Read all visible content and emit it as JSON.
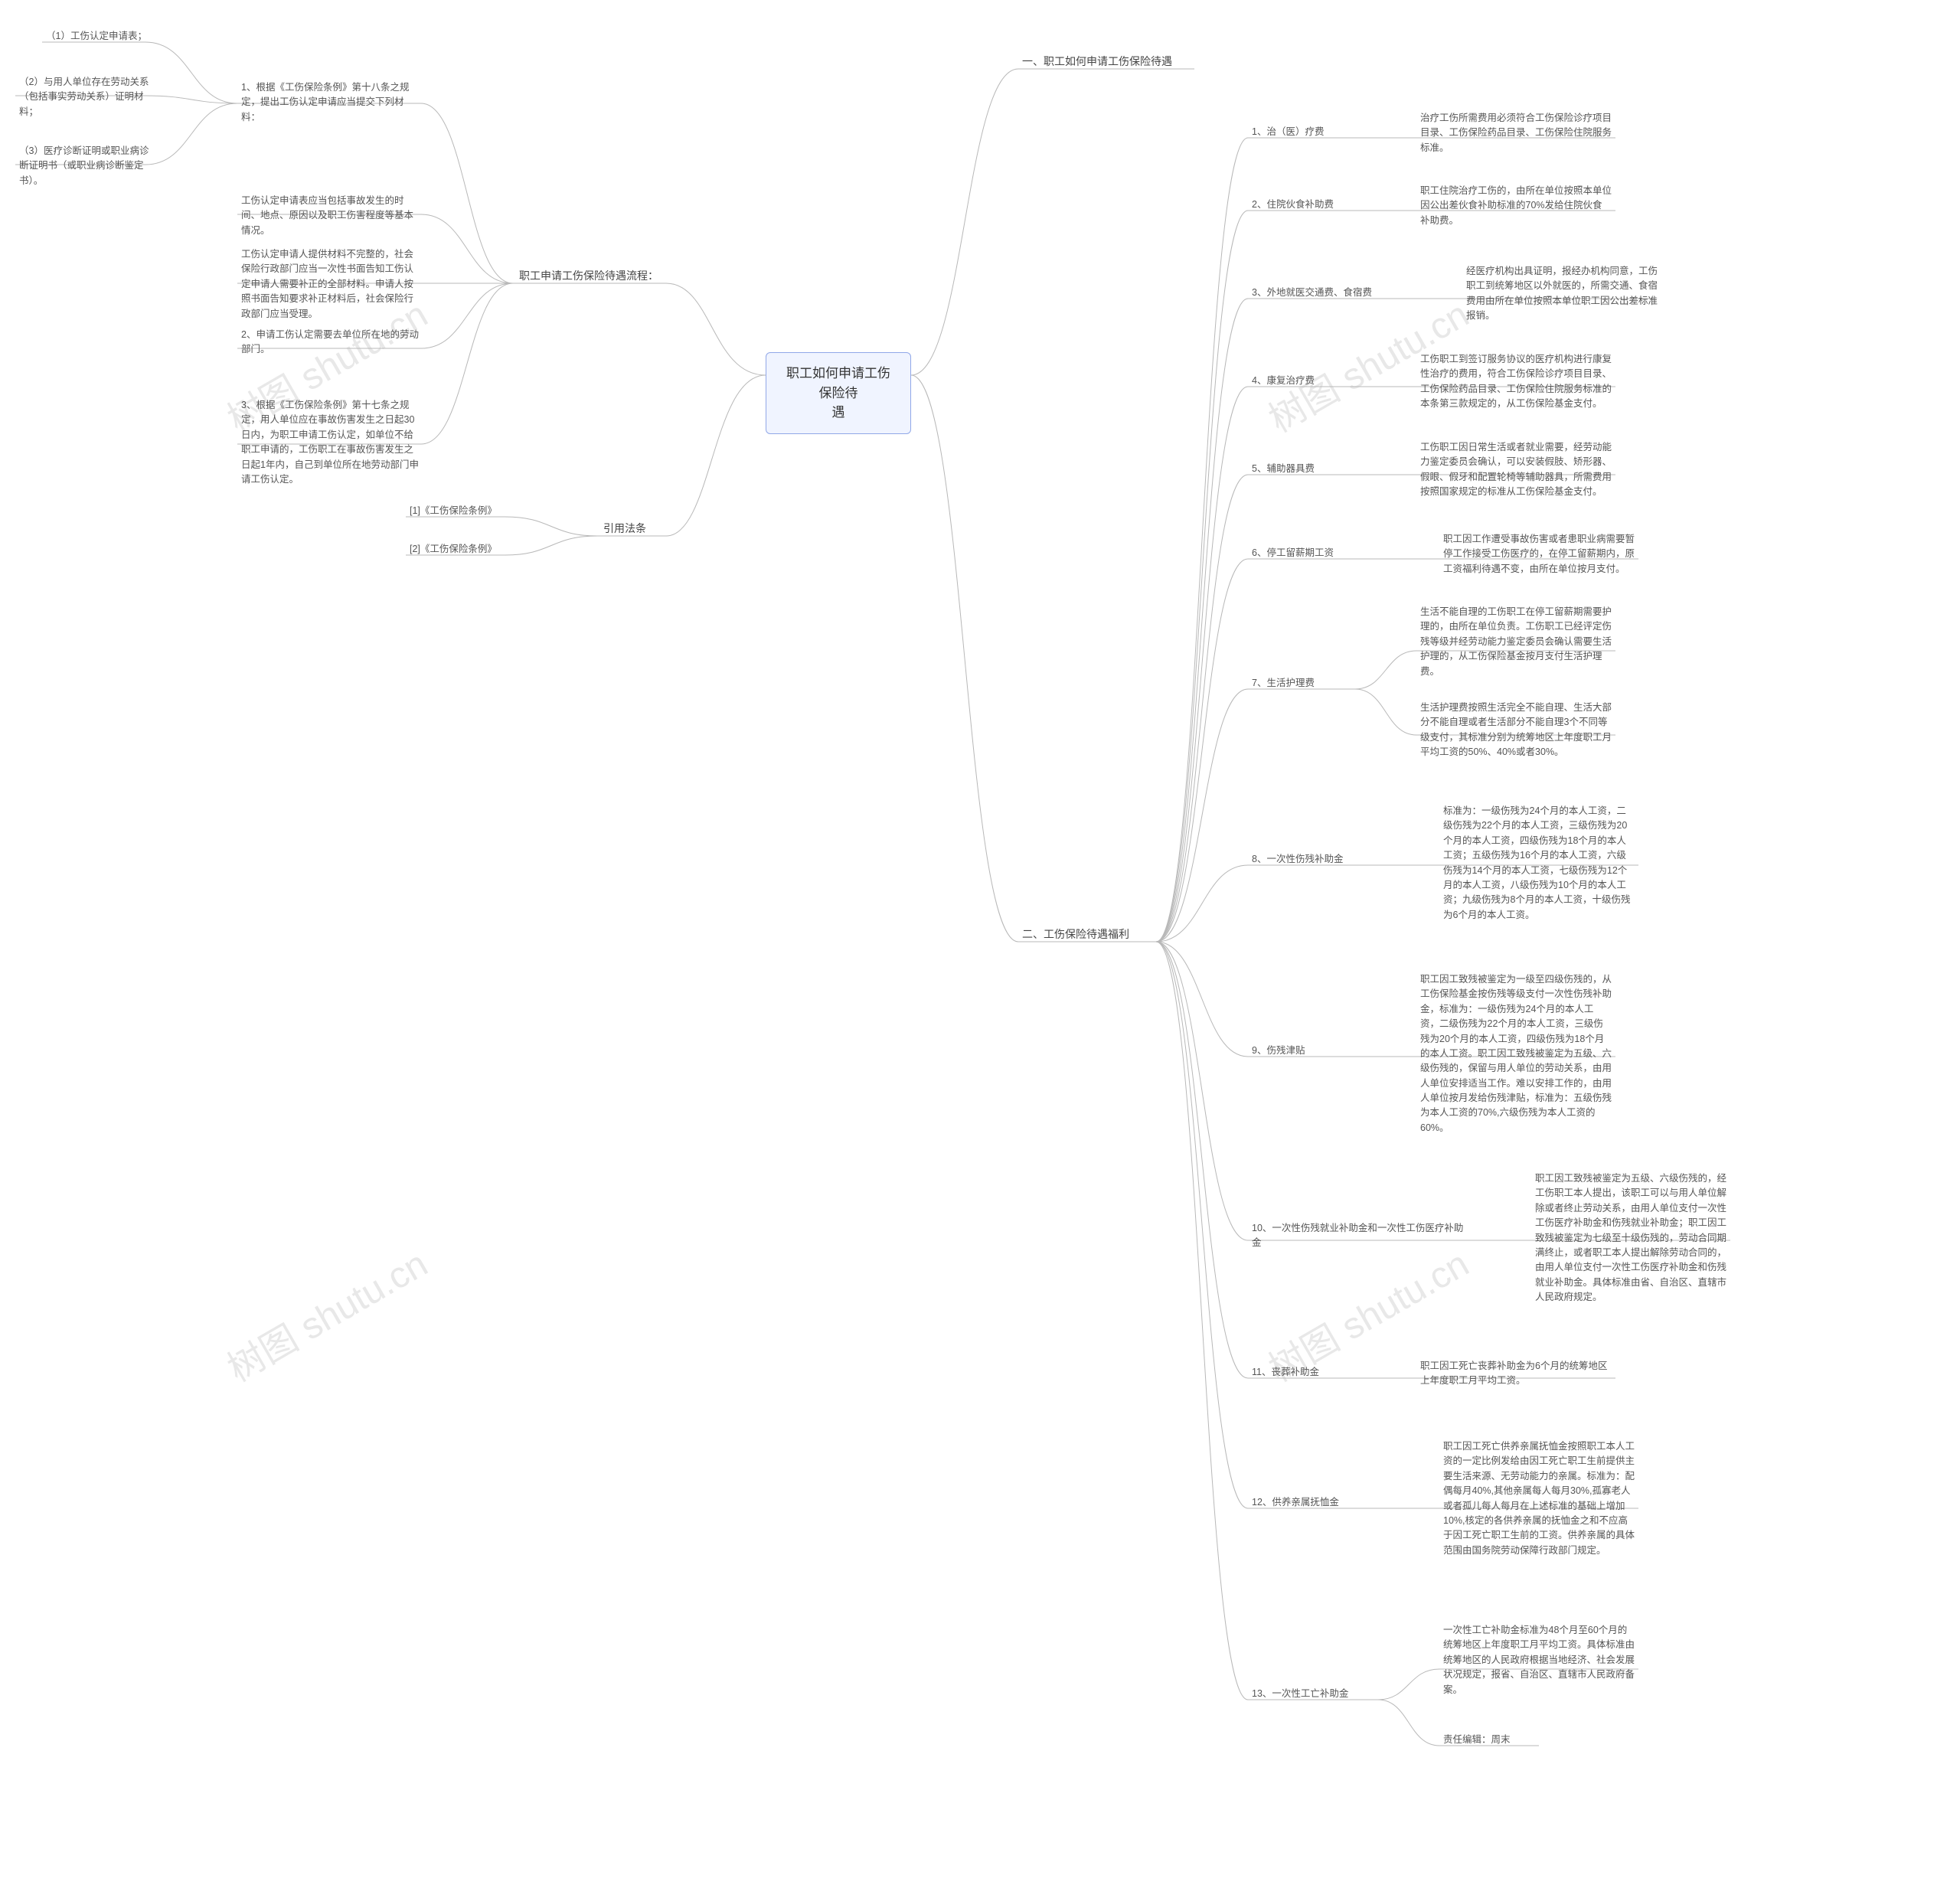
{
  "watermarks": [
    "树图 shutu.cn",
    "树图 shutu.cn",
    "树图 shutu.cn",
    "树图 shutu.cn"
  ],
  "center": {
    "label": "职工如何申请工伤保险待\n遇"
  },
  "colors": {
    "connector": "#b8b8b8",
    "text": "#555",
    "title_text": "#444",
    "center_bg": "#f0f4ff",
    "center_border": "#91a8e8"
  },
  "fonts": {
    "node_size": 12.5,
    "title_size": 14,
    "center_size": 17
  },
  "right": {
    "s1": {
      "title": "一、职工如何申请工伤保险待遇"
    },
    "s2": {
      "title": "二、工伤保险待遇福利",
      "items": [
        {
          "label": "1、治（医）疗费",
          "desc": "治疗工伤所需费用必须符合工伤保险诊疗项目目录、工伤保险药品目录、工伤保险住院服务标准。"
        },
        {
          "label": "2、住院伙食补助费",
          "desc": "职工住院治疗工伤的，由所在单位按照本单位因公出差伙食补助标准的70%发给住院伙食补助费。"
        },
        {
          "label": "3、外地就医交通费、食宿费",
          "desc": "经医疗机构出具证明，报经办机构同意，工伤职工到统筹地区以外就医的，所需交通、食宿费用由所在单位按照本单位职工因公出差标准报销。"
        },
        {
          "label": "4、康复治疗费",
          "desc": "工伤职工到签订服务协议的医疗机构进行康复性治疗的费用，符合工伤保险诊疗项目目录、工伤保险药品目录、工伤保险住院服务标准的本条第三款规定的，从工伤保险基金支付。"
        },
        {
          "label": "5、辅助器具费",
          "desc": "工伤职工因日常生活或者就业需要，经劳动能力鉴定委员会确认，可以安装假肢、矫形器、假眼、假牙和配置轮椅等辅助器具，所需费用按照国家规定的标准从工伤保险基金支付。"
        },
        {
          "label": "6、停工留薪期工资",
          "desc": "职工因工作遭受事故伤害或者患职业病需要暂停工作接受工伤医疗的，在停工留薪期内，原工资福利待遇不变，由所在单位按月支付。"
        },
        {
          "label": "7、生活护理费",
          "desc1": "生活不能自理的工伤职工在停工留薪期需要护理的，由所在单位负责。工伤职工已经评定伤残等级并经劳动能力鉴定委员会确认需要生活护理的，从工伤保险基金按月支付生活护理费。",
          "desc2": "生活护理费按照生活完全不能自理、生活大部分不能自理或者生活部分不能自理3个不同等级支付，其标准分别为统筹地区上年度职工月平均工资的50%、40%或者30%。"
        },
        {
          "label": "8、一次性伤残补助金",
          "desc": "标准为：一级伤残为24个月的本人工资，二级伤残为22个月的本人工资，三级伤残为20个月的本人工资，四级伤残为18个月的本人工资；五级伤残为16个月的本人工资，六级伤残为14个月的本人工资，七级伤残为12个月的本人工资，八级伤残为10个月的本人工资；九级伤残为8个月的本人工资，十级伤残为6个月的本人工资。"
        },
        {
          "label": "9、伤残津贴",
          "desc": "职工因工致残被鉴定为一级至四级伤残的，从工伤保险基金按伤残等级支付一次性伤残补助金，标准为：一级伤残为24个月的本人工资，二级伤残为22个月的本人工资，三级伤残为20个月的本人工资，四级伤残为18个月的本人工资。职工因工致残被鉴定为五级、六级伤残的，保留与用人单位的劳动关系，由用人单位安排适当工作。难以安排工作的，由用人单位按月发给伤残津贴，标准为：五级伤残为本人工资的70%,六级伤残为本人工资的60%。"
        },
        {
          "label": "10、一次性伤残就业补助金和一次性工伤医疗补助金",
          "desc": "职工因工致残被鉴定为五级、六级伤残的，经工伤职工本人提出，该职工可以与用人单位解除或者终止劳动关系，由用人单位支付一次性工伤医疗补助金和伤残就业补助金；职工因工致残被鉴定为七级至十级伤残的，劳动合同期满终止，或者职工本人提出解除劳动合同的，由用人单位支付一次性工伤医疗补助金和伤残就业补助金。具体标准由省、自治区、直辖市人民政府规定。"
        },
        {
          "label": "11、丧葬补助金",
          "desc": "职工因工死亡丧葬补助金为6个月的统筹地区上年度职工月平均工资。"
        },
        {
          "label": "12、供养亲属抚恤金",
          "desc": "职工因工死亡供养亲属抚恤金按照职工本人工资的一定比例发给由因工死亡职工生前提供主要生活来源、无劳动能力的亲属。标准为：配偶每月40%,其他亲属每人每月30%,孤寡老人或者孤儿每人每月在上述标准的基础上增加10%,核定的各供养亲属的抚恤金之和不应高于因工死亡职工生前的工资。供养亲属的具体范围由国务院劳动保障行政部门规定。"
        },
        {
          "label": "13、一次性工亡补助金",
          "desc": "一次性工亡补助金标准为48个月至60个月的统筹地区上年度职工月平均工资。具体标准由统筹地区的人民政府根据当地经济、社会发展状况规定，报省、自治区、直辖市人民政府备案。",
          "footer": "责任编辑：周末"
        }
      ]
    }
  },
  "left": {
    "s3": {
      "title": "职工申请工伤保险待遇流程：",
      "items": [
        {
          "label": "1、根据《工伤保险条例》第十八条之规定，提出工伤认定申请应当提交下列材料：",
          "subs": [
            {
              "text": "（1）工伤认定申请表；"
            },
            {
              "text": "（2）与用人单位存在劳动关系（包括事实劳动关系）证明材料；"
            },
            {
              "text": "（3）医疗诊断证明或职业病诊断证明书（或职业病诊断鉴定书）。"
            }
          ]
        },
        {
          "label": "工伤认定申请表应当包括事故发生的时间、地点、原因以及职工伤害程度等基本情况。"
        },
        {
          "label": "工伤认定申请人提供材料不完整的，社会保险行政部门应当一次性书面告知工伤认定申请人需要补正的全部材料。申请人按照书面告知要求补正材料后，社会保险行政部门应当受理。"
        },
        {
          "label": "2、申请工伤认定需要去单位所在地的劳动部门。"
        },
        {
          "label": "3、根据《工伤保险条例》第十七条之规定，用人单位应在事故伤害发生之日起30日内，为职工申请工伤认定，如单位不给职工申请的，工伤职工在事故伤害发生之日起1年内，自己到单位所在地劳动部门申请工伤认定。"
        }
      ]
    },
    "s4": {
      "title": "引用法条",
      "items": [
        {
          "label": "[1]《工伤保险条例》"
        },
        {
          "label": "[2]《工伤保险条例》"
        }
      ]
    }
  }
}
